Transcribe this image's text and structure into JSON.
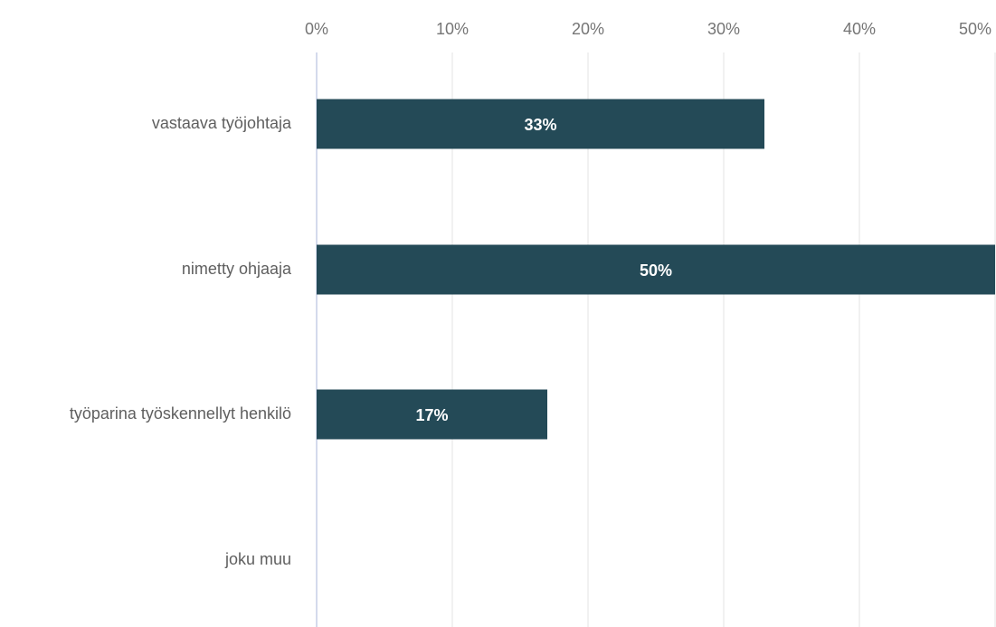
{
  "chart_data": {
    "type": "bar",
    "orientation": "horizontal",
    "categories": [
      "vastaava työjohtaja",
      "nimetty ohjaaja",
      "työparina työskennellyt henkilö",
      "joku muu"
    ],
    "values": [
      33,
      50,
      17,
      0
    ],
    "data_labels": [
      "33%",
      "50%",
      "17%",
      ""
    ],
    "xlim": [
      0,
      50
    ],
    "x_ticks": [
      0,
      10,
      20,
      30,
      40,
      50
    ],
    "x_tick_labels": [
      "0%",
      "10%",
      "20%",
      "30%",
      "40%",
      "50%"
    ],
    "x_axis_position": "top",
    "grid": true,
    "legend": "none",
    "bar_color": "#244a57",
    "grid_color": "#e3e3e3",
    "axis_color": "#c5cde6",
    "label_color": "#5f5f5f",
    "tick_color": "#757575"
  }
}
